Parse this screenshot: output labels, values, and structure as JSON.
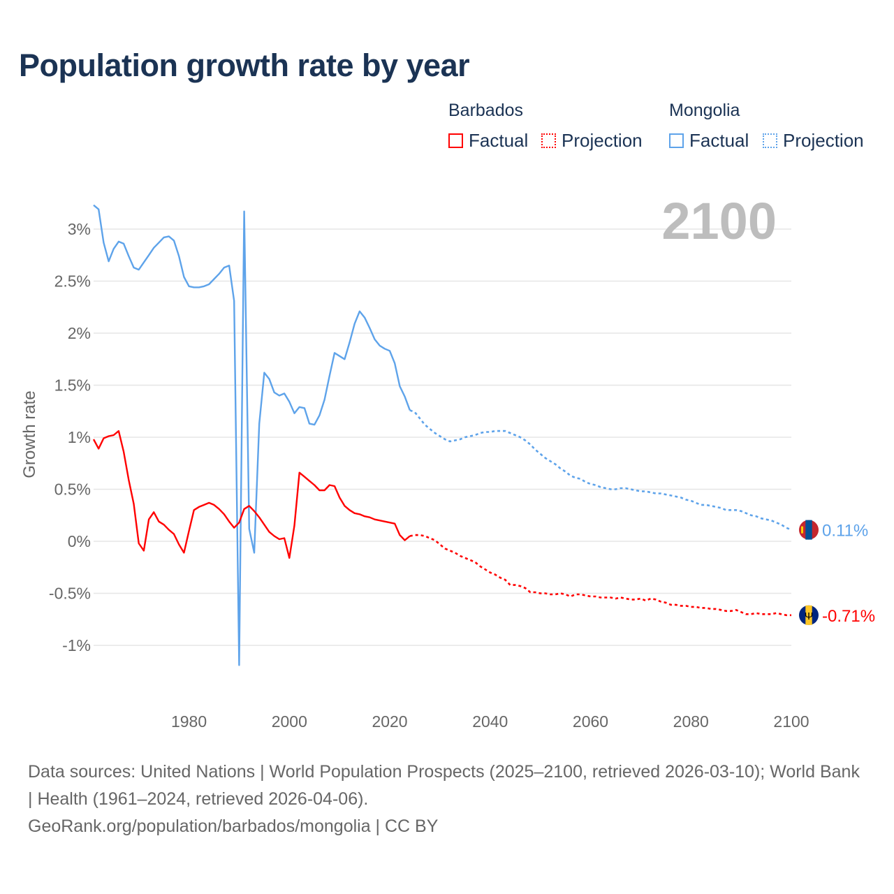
{
  "title": "Population growth rate by year",
  "legend": {
    "groups": [
      {
        "country": "Barbados",
        "factual": "Factual",
        "projection": "Projection",
        "color": "#ff0000"
      },
      {
        "country": "Mongolia",
        "factual": "Factual",
        "projection": "Projection",
        "color": "#5ea3ea"
      }
    ]
  },
  "chart_data": {
    "type": "line",
    "title": "Population growth rate by year",
    "xlabel": "",
    "ylabel": "Growth rate",
    "xlim": [
      1961,
      2100
    ],
    "ylim": [
      -1.35,
      3.3
    ],
    "x_ticks": [
      "1980",
      "2000",
      "2020",
      "2040",
      "2060",
      "2080",
      "2100"
    ],
    "y_ticks": [
      "3%",
      "2.5%",
      "2%",
      "1.5%",
      "1%",
      "0.5%",
      "0%",
      "-0.5%",
      "-1%"
    ],
    "y_tick_values": [
      3,
      2.5,
      2,
      1.5,
      1,
      0.5,
      0,
      -0.5,
      -1
    ],
    "year_marker": "2100",
    "series": [
      {
        "name": "Mongolia",
        "color": "#5ea3ea",
        "factual_start": 1961,
        "factual": [
          3.23,
          3.19,
          2.87,
          2.69,
          2.81,
          2.88,
          2.86,
          2.74,
          2.63,
          2.61,
          2.68,
          2.75,
          2.82,
          2.87,
          2.92,
          2.93,
          2.89,
          2.74,
          2.54,
          2.45,
          2.44,
          2.44,
          2.45,
          2.47,
          2.52,
          2.57,
          2.63,
          2.65,
          2.31,
          -1.19,
          3.17,
          0.12,
          -0.11,
          1.13,
          1.62,
          1.56,
          1.43,
          1.4,
          1.42,
          1.34,
          1.23,
          1.29,
          1.28,
          1.13,
          1.12,
          1.21,
          1.36,
          1.59,
          1.81,
          1.78,
          1.75,
          1.91,
          2.09,
          2.21,
          2.15,
          2.05,
          1.94,
          1.88,
          1.85,
          1.83,
          1.71,
          1.49,
          1.39,
          1.26
        ],
        "projection_start": 2024,
        "projection": [
          1.26,
          1.24,
          1.18,
          1.12,
          1.08,
          1.04,
          1.01,
          0.98,
          0.96,
          0.97,
          0.98,
          1.0,
          1.01,
          1.02,
          1.04,
          1.05,
          1.05,
          1.06,
          1.06,
          1.06,
          1.04,
          1.02,
          1.0,
          0.97,
          0.93,
          0.88,
          0.84,
          0.8,
          0.77,
          0.74,
          0.7,
          0.67,
          0.63,
          0.61,
          0.6,
          0.57,
          0.55,
          0.54,
          0.52,
          0.51,
          0.5,
          0.5,
          0.51,
          0.51,
          0.5,
          0.49,
          0.48,
          0.48,
          0.47,
          0.46,
          0.46,
          0.45,
          0.44,
          0.43,
          0.42,
          0.4,
          0.39,
          0.37,
          0.35,
          0.35,
          0.34,
          0.33,
          0.32,
          0.3,
          0.3,
          0.3,
          0.29,
          0.27,
          0.25,
          0.24,
          0.22,
          0.21,
          0.2,
          0.18,
          0.16,
          0.13,
          0.11
        ],
        "end_label": "0.11%"
      },
      {
        "name": "Barbados",
        "color": "#ff0000",
        "factual_start": 1961,
        "factual": [
          0.98,
          0.89,
          0.99,
          1.01,
          1.02,
          1.06,
          0.86,
          0.59,
          0.36,
          -0.02,
          -0.09,
          0.21,
          0.28,
          0.19,
          0.16,
          0.11,
          0.07,
          -0.03,
          -0.11,
          0.1,
          0.3,
          0.33,
          0.35,
          0.37,
          0.35,
          0.31,
          0.26,
          0.19,
          0.13,
          0.18,
          0.31,
          0.34,
          0.29,
          0.23,
          0.16,
          0.09,
          0.05,
          0.02,
          0.03,
          -0.16,
          0.15,
          0.66,
          0.62,
          0.58,
          0.54,
          0.49,
          0.49,
          0.54,
          0.53,
          0.42,
          0.34,
          0.3,
          0.27,
          0.26,
          0.24,
          0.23,
          0.21,
          0.2,
          0.19,
          0.18,
          0.17,
          0.06,
          0.01,
          0.05
        ],
        "projection_start": 2024,
        "projection": [
          0.05,
          0.06,
          0.06,
          0.05,
          0.03,
          0.01,
          -0.03,
          -0.07,
          -0.09,
          -0.11,
          -0.14,
          -0.16,
          -0.18,
          -0.2,
          -0.24,
          -0.27,
          -0.3,
          -0.32,
          -0.35,
          -0.37,
          -0.42,
          -0.42,
          -0.43,
          -0.45,
          -0.49,
          -0.49,
          -0.5,
          -0.5,
          -0.51,
          -0.51,
          -0.5,
          -0.51,
          -0.53,
          -0.51,
          -0.51,
          -0.52,
          -0.53,
          -0.53,
          -0.54,
          -0.54,
          -0.54,
          -0.55,
          -0.54,
          -0.55,
          -0.56,
          -0.56,
          -0.55,
          -0.57,
          -0.55,
          -0.56,
          -0.58,
          -0.59,
          -0.61,
          -0.61,
          -0.62,
          -0.62,
          -0.63,
          -0.63,
          -0.64,
          -0.64,
          -0.65,
          -0.65,
          -0.66,
          -0.67,
          -0.67,
          -0.66,
          -0.68,
          -0.7,
          -0.7,
          -0.69,
          -0.7,
          -0.7,
          -0.7,
          -0.69,
          -0.7,
          -0.71,
          -0.71
        ],
        "end_label": "-0.71%"
      }
    ]
  },
  "footer": {
    "line1": "Data sources: United Nations | World Population Prospects (2025–2100, retrieved 2026-03-10); World Bank | Health (1961–2024, retrieved 2026-04-06).",
    "line2": "GeoRank.org/population/barbados/mongolia | CC BY"
  }
}
